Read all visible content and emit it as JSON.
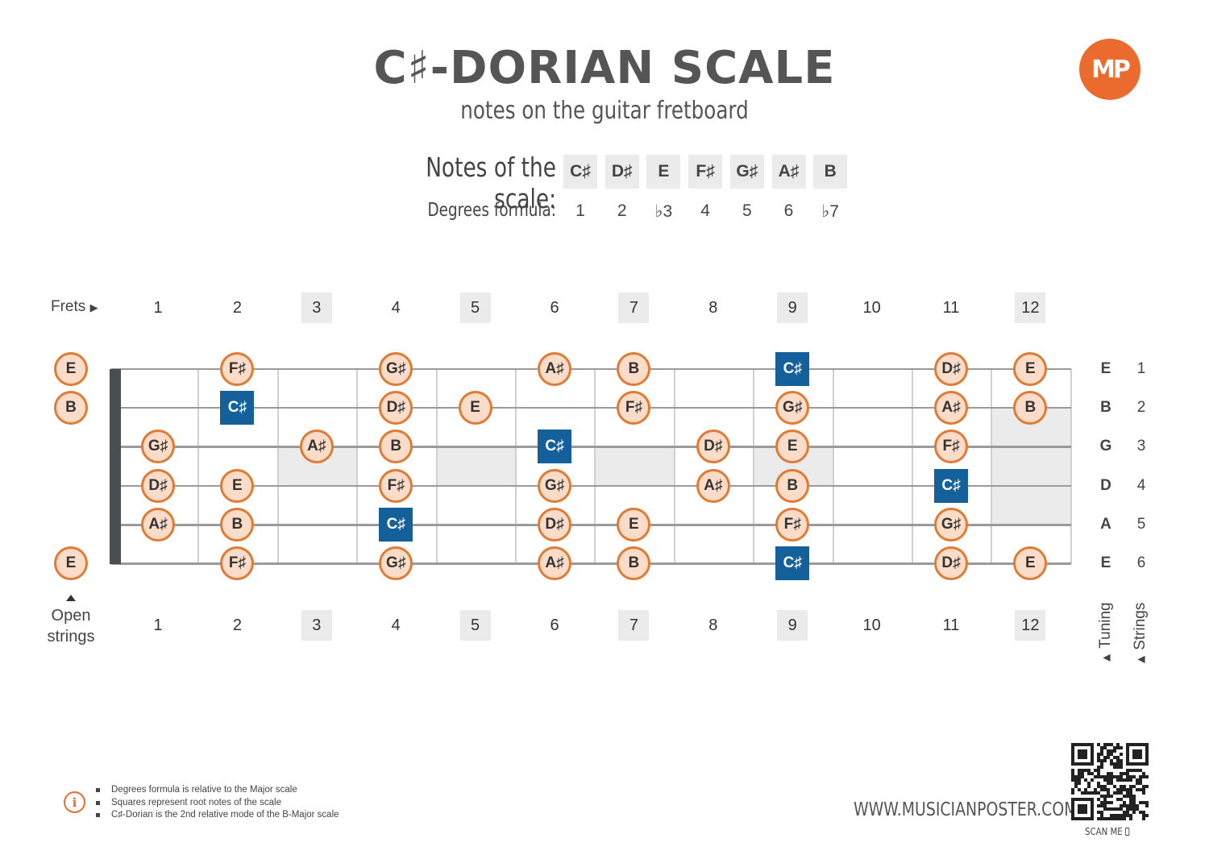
{
  "header": {
    "title": "C♯-DORIAN SCALE",
    "subtitle": "notes on the guitar fretboard",
    "logo_text": "MP",
    "logo_color": "#ea6b2d"
  },
  "scale": {
    "notes_label": "Notes of the scale:",
    "degrees_label": "Degrees formula:",
    "notes": [
      "C♯",
      "D♯",
      "E",
      "F♯",
      "G♯",
      "A♯",
      "B"
    ],
    "degrees": [
      "1",
      "2",
      "♭3",
      "4",
      "5",
      "6",
      "♭7"
    ]
  },
  "fretboard": {
    "frets_label": "Frets",
    "open_label_line1": "Open",
    "open_label_line2": "strings",
    "fret_numbers": [
      "1",
      "2",
      "3",
      "4",
      "5",
      "6",
      "7",
      "8",
      "9",
      "10",
      "11",
      "12"
    ],
    "marked_frets": [
      3,
      5,
      7,
      9,
      12
    ],
    "tuning": [
      "E",
      "B",
      "G",
      "D",
      "A",
      "E"
    ],
    "string_numbers": [
      "1",
      "2",
      "3",
      "4",
      "5",
      "6"
    ],
    "tuning_caption": "Tuning",
    "strings_caption": "Strings",
    "root_color": "#14609a",
    "note_fill": "#fbdcc8",
    "note_border": "#e07b35",
    "positions": [
      {
        "string": 1,
        "fret": 0,
        "note": "E",
        "root": false
      },
      {
        "string": 1,
        "fret": 2,
        "note": "F♯",
        "root": false
      },
      {
        "string": 1,
        "fret": 4,
        "note": "G♯",
        "root": false
      },
      {
        "string": 1,
        "fret": 6,
        "note": "A♯",
        "root": false
      },
      {
        "string": 1,
        "fret": 7,
        "note": "B",
        "root": false
      },
      {
        "string": 1,
        "fret": 9,
        "note": "C♯",
        "root": true
      },
      {
        "string": 1,
        "fret": 11,
        "note": "D♯",
        "root": false
      },
      {
        "string": 1,
        "fret": 12,
        "note": "E",
        "root": false
      },
      {
        "string": 2,
        "fret": 0,
        "note": "B",
        "root": false
      },
      {
        "string": 2,
        "fret": 2,
        "note": "C♯",
        "root": true
      },
      {
        "string": 2,
        "fret": 4,
        "note": "D♯",
        "root": false
      },
      {
        "string": 2,
        "fret": 5,
        "note": "E",
        "root": false
      },
      {
        "string": 2,
        "fret": 7,
        "note": "F♯",
        "root": false
      },
      {
        "string": 2,
        "fret": 9,
        "note": "G♯",
        "root": false
      },
      {
        "string": 2,
        "fret": 11,
        "note": "A♯",
        "root": false
      },
      {
        "string": 2,
        "fret": 12,
        "note": "B",
        "root": false
      },
      {
        "string": 3,
        "fret": 1,
        "note": "G♯",
        "root": false
      },
      {
        "string": 3,
        "fret": 3,
        "note": "A♯",
        "root": false
      },
      {
        "string": 3,
        "fret": 4,
        "note": "B",
        "root": false
      },
      {
        "string": 3,
        "fret": 6,
        "note": "C♯",
        "root": true
      },
      {
        "string": 3,
        "fret": 8,
        "note": "D♯",
        "root": false
      },
      {
        "string": 3,
        "fret": 9,
        "note": "E",
        "root": false
      },
      {
        "string": 3,
        "fret": 11,
        "note": "F♯",
        "root": false
      },
      {
        "string": 4,
        "fret": 1,
        "note": "D♯",
        "root": false
      },
      {
        "string": 4,
        "fret": 2,
        "note": "E",
        "root": false
      },
      {
        "string": 4,
        "fret": 4,
        "note": "F♯",
        "root": false
      },
      {
        "string": 4,
        "fret": 6,
        "note": "G♯",
        "root": false
      },
      {
        "string": 4,
        "fret": 8,
        "note": "A♯",
        "root": false
      },
      {
        "string": 4,
        "fret": 9,
        "note": "B",
        "root": false
      },
      {
        "string": 4,
        "fret": 11,
        "note": "C♯",
        "root": true
      },
      {
        "string": 5,
        "fret": 1,
        "note": "A♯",
        "root": false
      },
      {
        "string": 5,
        "fret": 2,
        "note": "B",
        "root": false
      },
      {
        "string": 5,
        "fret": 4,
        "note": "C♯",
        "root": true
      },
      {
        "string": 5,
        "fret": 6,
        "note": "D♯",
        "root": false
      },
      {
        "string": 5,
        "fret": 7,
        "note": "E",
        "root": false
      },
      {
        "string": 5,
        "fret": 9,
        "note": "F♯",
        "root": false
      },
      {
        "string": 5,
        "fret": 11,
        "note": "G♯",
        "root": false
      },
      {
        "string": 6,
        "fret": 0,
        "note": "E",
        "root": false
      },
      {
        "string": 6,
        "fret": 2,
        "note": "F♯",
        "root": false
      },
      {
        "string": 6,
        "fret": 4,
        "note": "G♯",
        "root": false
      },
      {
        "string": 6,
        "fret": 6,
        "note": "A♯",
        "root": false
      },
      {
        "string": 6,
        "fret": 7,
        "note": "B",
        "root": false
      },
      {
        "string": 6,
        "fret": 9,
        "note": "C♯",
        "root": true
      },
      {
        "string": 6,
        "fret": 11,
        "note": "D♯",
        "root": false
      },
      {
        "string": 6,
        "fret": 12,
        "note": "E",
        "root": false
      }
    ]
  },
  "footer": {
    "notes": [
      "Degrees formula is relative to the Major scale",
      "Squares represent root notes of the scale",
      "C♯-Dorian is the 2nd relative mode of the B-Major scale"
    ],
    "info_icon": "info-icon",
    "website": "WWW.MUSICIANPOSTER.COM",
    "scan_label": "SCAN ME"
  }
}
